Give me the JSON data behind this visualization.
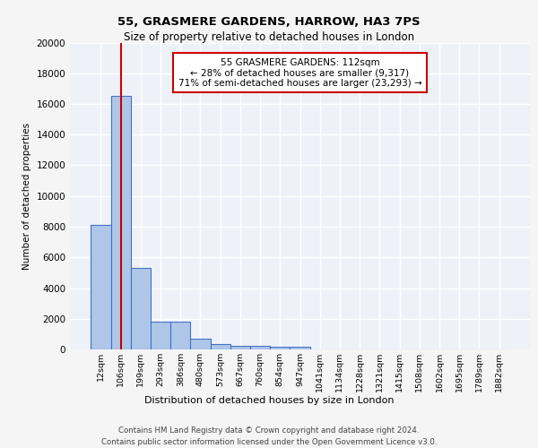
{
  "title_line1": "55, GRASMERE GARDENS, HARROW, HA3 7PS",
  "title_line2": "Size of property relative to detached houses in London",
  "xlabel": "Distribution of detached houses by size in London",
  "ylabel": "Number of detached properties",
  "bin_labels": [
    "12sqm",
    "106sqm",
    "199sqm",
    "293sqm",
    "386sqm",
    "480sqm",
    "573sqm",
    "667sqm",
    "760sqm",
    "854sqm",
    "947sqm",
    "1041sqm",
    "1134sqm",
    "1228sqm",
    "1321sqm",
    "1415sqm",
    "1508sqm",
    "1602sqm",
    "1695sqm",
    "1789sqm",
    "1882sqm"
  ],
  "bar_values": [
    8100,
    16500,
    5300,
    1800,
    1800,
    700,
    350,
    250,
    220,
    200,
    180,
    0,
    0,
    0,
    0,
    0,
    0,
    0,
    0,
    0,
    0
  ],
  "bar_color": "#aec6e8",
  "bar_edge_color": "#4472c4",
  "property_line_x": 1,
  "property_line_color": "#cc0000",
  "annotation_text": "55 GRASMERE GARDENS: 112sqm\n← 28% of detached houses are smaller (9,317)\n71% of semi-detached houses are larger (23,293) →",
  "annotation_box_color": "#ffffff",
  "annotation_box_edge": "#cc0000",
  "ylim": [
    0,
    20000
  ],
  "yticks": [
    0,
    2000,
    4000,
    6000,
    8000,
    10000,
    12000,
    14000,
    16000,
    18000,
    20000
  ],
  "footer_line1": "Contains HM Land Registry data © Crown copyright and database right 2024.",
  "footer_line2": "Contains public sector information licensed under the Open Government Licence v3.0.",
  "bg_color": "#eef2f8",
  "grid_color": "#ffffff",
  "fig_bg_color": "#f5f5f5"
}
